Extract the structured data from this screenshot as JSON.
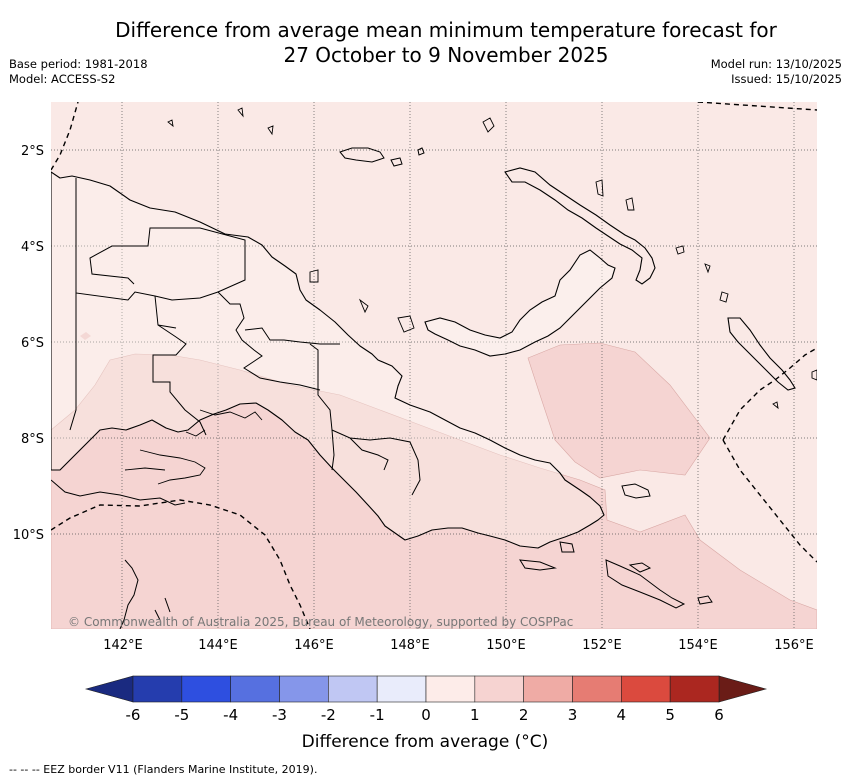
{
  "header": {
    "title_line1": "Difference from average mean minimum temperature forecast for",
    "title_line2": "27 October to 9 November 2025",
    "base_period": "Base period: 1981-2018",
    "model": "Model: ACCESS-S2",
    "model_run": "Model run: 13/10/2025",
    "issued": "Issued: 15/10/2025"
  },
  "map": {
    "lat_labels": [
      "2°S",
      "4°S",
      "6°S",
      "8°S",
      "10°S"
    ],
    "lon_labels": [
      "142°E",
      "144°E",
      "146°E",
      "148°E",
      "150°E",
      "152°E",
      "154°E",
      "156°E"
    ],
    "copyright": "© Commonwealth of Australia 2025, Bureau of Meteorology, supported by COSPPac",
    "colors": {
      "land_fill": "#fcf5f2",
      "anomaly_0_1": "#fae9e6",
      "anomaly_1_2": "#f5d4d2"
    }
  },
  "colorbar": {
    "ticks": [
      "-6",
      "-5",
      "-4",
      "-3",
      "-2",
      "-1",
      "0",
      "1",
      "2",
      "3",
      "4",
      "5",
      "6"
    ],
    "colors": [
      "#253dae",
      "#2e4fe0",
      "#5670e0",
      "#8596ea",
      "#c0c7f3",
      "#e9ecfb",
      "#fdece9",
      "#f6d3d1",
      "#efaba5",
      "#e67c73",
      "#db4a3e",
      "#ab2720"
    ],
    "low_extend": "#1a2a80",
    "high_extend": "#6a1c17",
    "label": "Difference from average (°C)"
  },
  "footnote": "-- -- -- EEZ border V11 (Flanders Marine Institute, 2019)."
}
